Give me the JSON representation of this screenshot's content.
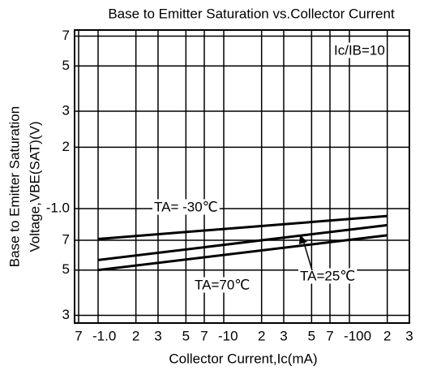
{
  "chart_data": {
    "type": "line",
    "title": "Base to Emitter Saturation vs.Collector Current",
    "y_label": [
      "Base  to Emitter Saturation",
      "Voltage,VBE(SAT)(V)"
    ],
    "x_label": "Collector Current,Ic(mA)",
    "x": [
      1,
      200
    ],
    "series": [
      {
        "name": "TA= -30℃",
        "color": "#000000",
        "values": [
          0.71,
          0.92
        ]
      },
      {
        "name": "TA=25℃",
        "color": "#000000",
        "values": [
          0.56,
          0.83
        ]
      },
      {
        "name": "TA=70℃",
        "color": "#000000",
        "values": [
          0.5,
          0.74
        ]
      }
    ],
    "annotations": [
      "Ic/IB=10"
    ],
    "xscale": "log",
    "yscale": "log",
    "xlim": [
      0.65,
      300
    ],
    "ylim": [
      0.275,
      7.5
    ],
    "xticks": [
      {
        "value": 0.7,
        "label": "7"
      },
      {
        "value": 1,
        "label": "-1.0"
      },
      2,
      3,
      5,
      {
        "value": 7,
        "label": "7"
      },
      {
        "value": 10,
        "label": "-10"
      },
      {
        "value": 20,
        "label": "2"
      },
      {
        "value": 30,
        "label": "3"
      },
      {
        "value": 50,
        "label": "5"
      },
      {
        "value": 70,
        "label": "7"
      },
      {
        "value": 100,
        "label": "-100"
      },
      {
        "value": 200,
        "label": "2"
      },
      {
        "value": 300,
        "label": "3"
      }
    ],
    "yticks": [
      7,
      5,
      3,
      2,
      {
        "value": 1,
        "label": "-1.0"
      },
      {
        "value": 0.7,
        "label": "7"
      },
      {
        "value": 0.5,
        "label": "5"
      },
      {
        "value": 0.3,
        "label": "3"
      }
    ],
    "grid": true
  }
}
